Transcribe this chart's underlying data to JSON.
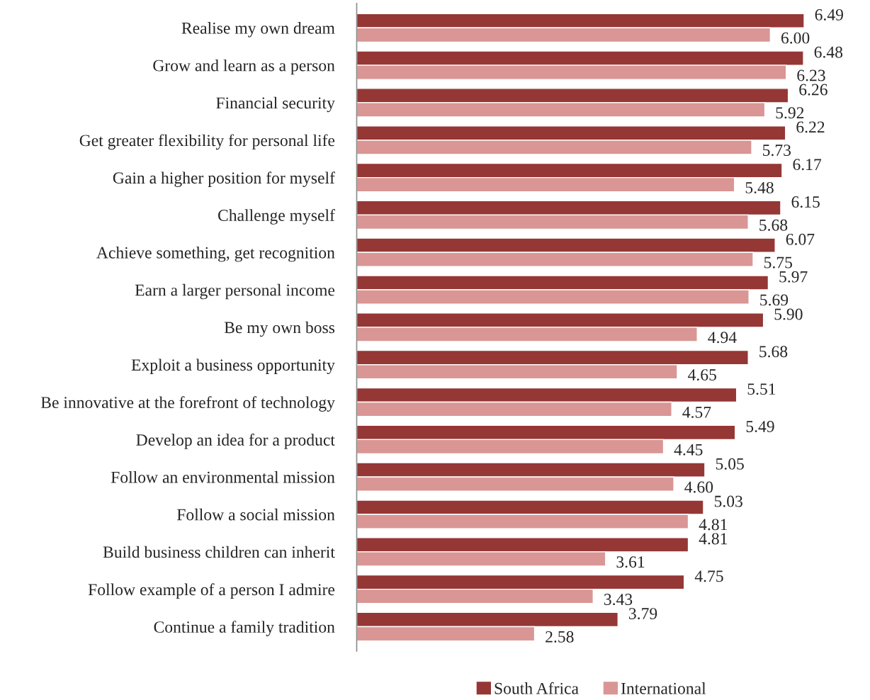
{
  "chart_data": {
    "type": "bar",
    "orientation": "horizontal",
    "categories": [
      "Realise my own dream",
      "Grow and learn as a person",
      "Financial security",
      "Get greater flexibility for personal life",
      "Gain a higher position for myself",
      "Challenge myself",
      "Achieve something, get recognition",
      "Earn a larger personal income",
      "Be my own boss",
      "Exploit a business opportunity",
      "Be innovative at the forefront of technology",
      "Develop an idea for a product",
      "Follow an environmental mission",
      "Follow a social mission",
      "Build business children can inherit",
      "Follow example of a person I admire",
      "Continue a family tradition"
    ],
    "series": [
      {
        "name": "South Africa",
        "color": "#953735",
        "values": [
          6.49,
          6.48,
          6.26,
          6.22,
          6.17,
          6.15,
          6.07,
          5.97,
          5.9,
          5.68,
          5.51,
          5.49,
          5.05,
          5.03,
          4.81,
          4.75,
          3.79
        ],
        "value_labels": [
          "6.49",
          "6.48",
          "6.26",
          "6.22",
          "6.17",
          "6.15",
          "6.07",
          "5.97",
          "5.90",
          "5.68",
          "5.51",
          "5.49",
          "5.05",
          "5.03",
          "4.81",
          "4.75",
          "3.79"
        ]
      },
      {
        "name": "International",
        "color": "#d99694",
        "values": [
          6.0,
          6.23,
          5.92,
          5.73,
          5.48,
          5.68,
          5.75,
          5.69,
          4.94,
          4.65,
          4.57,
          4.45,
          4.6,
          4.81,
          3.61,
          3.43,
          2.58
        ],
        "value_labels": [
          "6.00",
          "6.23",
          "5.92",
          "5.73",
          "5.48",
          "5.68",
          "5.75",
          "5.69",
          "4.94",
          "4.65",
          "4.57",
          "4.45",
          "4.60",
          "4.81",
          "3.61",
          "3.43",
          "2.58"
        ]
      }
    ],
    "tick_labels": "y",
    "grid": false,
    "legend": "bottom"
  }
}
